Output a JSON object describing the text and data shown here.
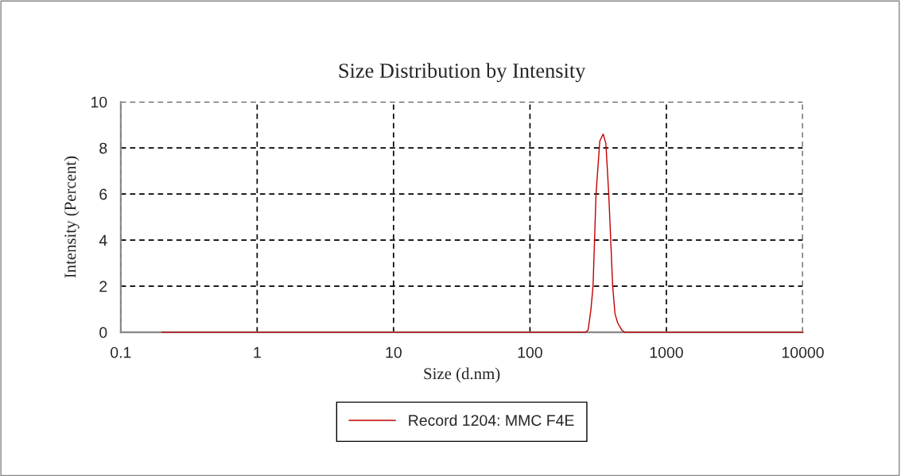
{
  "chart_data": {
    "type": "line",
    "title": "Size Distribution by Intensity",
    "xlabel": "Size (d.nm)",
    "ylabel": "Intensity (Percent)",
    "series": [
      {
        "name": "Record 1204: MMC F4E",
        "color": "#c00000",
        "x": [
          0.2,
          1,
          10,
          100,
          255,
          267,
          280,
          290,
          305,
          325,
          344,
          360,
          378,
          404,
          420,
          440,
          470,
          495,
          550,
          1000,
          10000
        ],
        "values": [
          0,
          0,
          0,
          0,
          0,
          0.1,
          1.0,
          2,
          6,
          8.3,
          8.6,
          8.2,
          6,
          2,
          0.8,
          0.4,
          0.1,
          0,
          0,
          0,
          0
        ]
      }
    ],
    "log": "x",
    "xlim": [
      0.1,
      10000
    ],
    "xticks": [
      0.1,
      1,
      10,
      100,
      1000,
      10000
    ],
    "ylim": [
      0,
      10
    ],
    "yticks": [
      0,
      2,
      4,
      6,
      8,
      10
    ],
    "grid": true,
    "legend": "bottom",
    "line_style": "solid",
    "marker": "none"
  }
}
